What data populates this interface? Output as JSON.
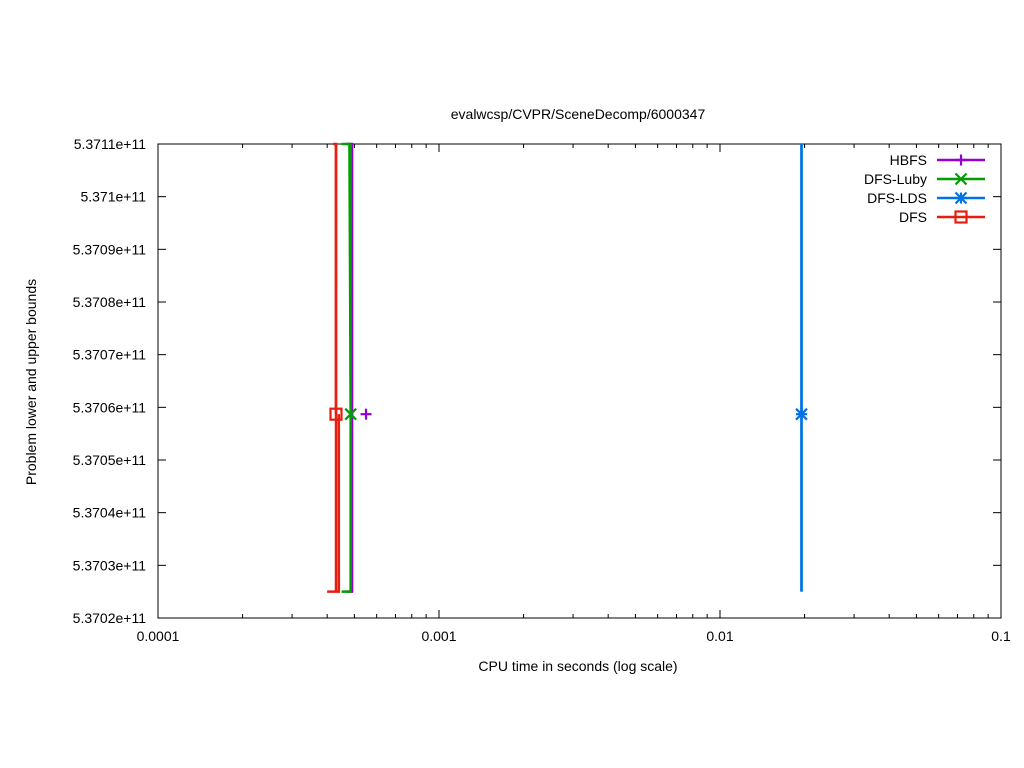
{
  "chart_data": {
    "type": "line",
    "title": "evalwcsp/CVPR/SceneDecomp/6000347",
    "xlabel": "CPU time in seconds (log scale)",
    "ylabel": "Problem lower and upper bounds",
    "xscale": "log",
    "xlim": [
      0.0001,
      0.1
    ],
    "ylim": [
      537020000000,
      537110000000
    ],
    "grid": false,
    "legend_position": "top-right",
    "x_ticks": [
      {
        "value": 0.0001,
        "label": "0.0001"
      },
      {
        "value": 0.001,
        "label": "0.001"
      },
      {
        "value": 0.01,
        "label": "0.01"
      },
      {
        "value": 0.1,
        "label": "0.1"
      }
    ],
    "y_ticks": [
      {
        "value": 537020000000,
        "label": "5.3702e+11"
      },
      {
        "value": 537030000000,
        "label": "5.3703e+11"
      },
      {
        "value": 537040000000,
        "label": "5.3704e+11"
      },
      {
        "value": 537050000000,
        "label": "5.3705e+11"
      },
      {
        "value": 537060000000,
        "label": "5.3706e+11"
      },
      {
        "value": 537070000000,
        "label": "5.3707e+11"
      },
      {
        "value": 537080000000,
        "label": "5.3708e+11"
      },
      {
        "value": 537090000000,
        "label": "5.3709e+11"
      },
      {
        "value": 537100000000,
        "label": "5.371e+11"
      },
      {
        "value": 537110000000,
        "label": "5.3711e+11"
      }
    ],
    "series": [
      {
        "name": "HBFS",
        "color": "#9400d3",
        "marker": "plus",
        "upper": [
          [
            0.00047,
            537110000000
          ],
          [
            0.00049,
            537110000000
          ]
        ],
        "lower": [
          [
            0.00047,
            537025000000
          ],
          [
            0.00049,
            537025000000
          ]
        ],
        "vertical_at": 0.00049,
        "point": [
          0.00055,
          537058700000
        ]
      },
      {
        "name": "DFS-Luby",
        "color": "#009e00",
        "marker": "cross",
        "upper": [
          [
            0.00045,
            537110000000
          ],
          [
            0.00048,
            537110000000
          ]
        ],
        "lower": [
          [
            0.00045,
            537025000000
          ],
          [
            0.000485,
            537025000000
          ]
        ],
        "vertical_at": 0.000485,
        "point": [
          0.000485,
          537058700000
        ]
      },
      {
        "name": "DFS-LDS",
        "color": "#0072e5",
        "marker": "star",
        "upper": [
          [
            0.0195,
            537110000000
          ],
          [
            0.0195,
            537110000000
          ]
        ],
        "lower": [
          [
            0.0195,
            537025000000
          ],
          [
            0.0195,
            537025000000
          ]
        ],
        "vertical_at": 0.0195,
        "point": [
          0.0195,
          537058700000
        ]
      },
      {
        "name": "DFS",
        "color": "#e51e10",
        "marker": "square",
        "upper": [
          [
            0.00042,
            537110000000
          ],
          [
            0.00043,
            537110000000
          ]
        ],
        "lower": [
          [
            0.0004,
            537025000000
          ],
          [
            0.00044,
            537025000000
          ]
        ],
        "vertical_at": 0.00043,
        "vertical_at_lower": 0.00044,
        "point": [
          0.00043,
          537058700000
        ]
      }
    ]
  }
}
